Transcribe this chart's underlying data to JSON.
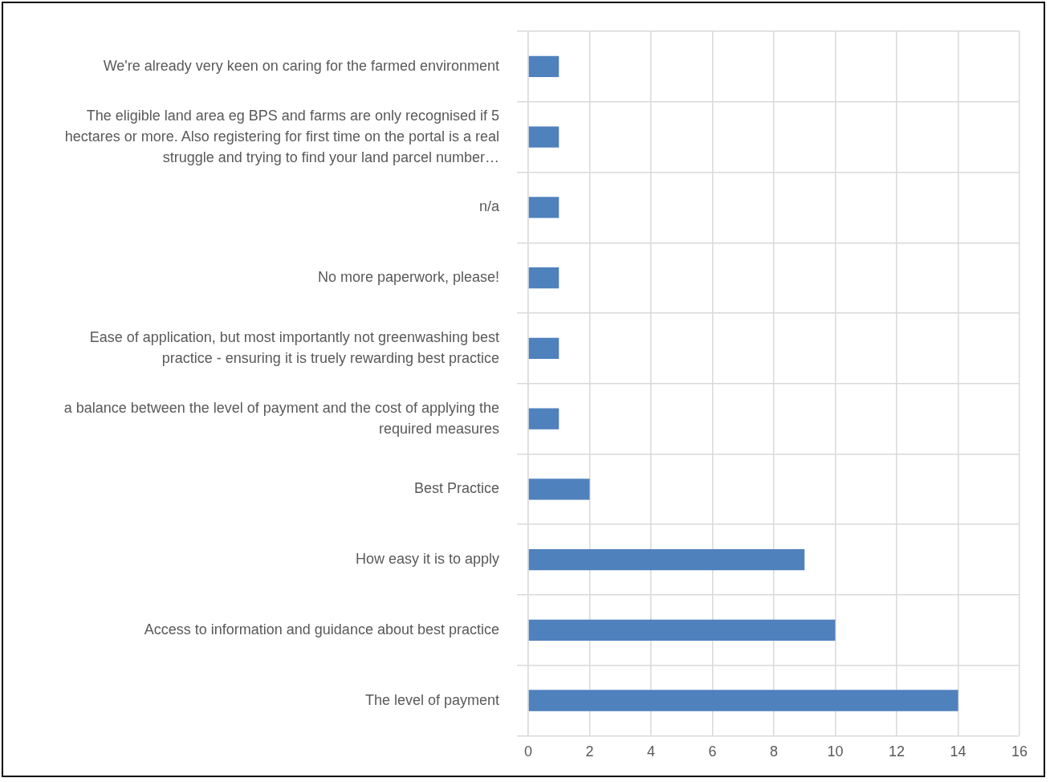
{
  "chart_data": {
    "type": "bar",
    "orientation": "horizontal",
    "categories": [
      "We're already very keen on caring for the farmed environment",
      "The eligible land area eg BPS and farms are only recognised if 5 hectares or more. Also registering for first time on the portal is a real struggle and trying to find your land parcel number…",
      "n/a",
      "No more paperwork, please!",
      "Ease of application, but most importantly not greenwashing best practice - ensuring it is truely rewarding best practice",
      "a balance between the level of payment and the cost of applying the required measures",
      "Best Practice",
      "How easy it is to apply",
      "Access to information and guidance about best practice",
      "The level of payment"
    ],
    "values": [
      1,
      1,
      1,
      1,
      1,
      1,
      2,
      9,
      10,
      14
    ],
    "color": "#4f81bd",
    "xlim": [
      0,
      16
    ],
    "xticks": [
      0,
      2,
      4,
      6,
      8,
      10,
      12,
      14,
      16
    ],
    "grid": true
  }
}
